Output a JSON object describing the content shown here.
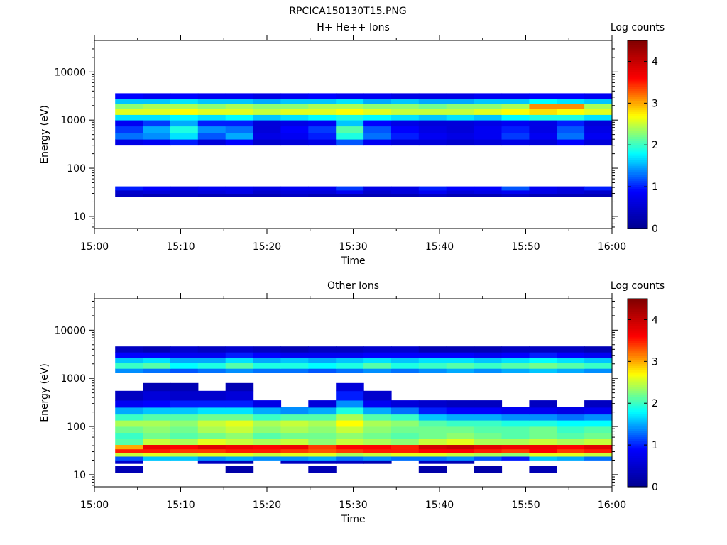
{
  "figure": {
    "title": "RPCICA150130T15.PNG",
    "background": "#ffffff"
  },
  "colormap": {
    "name": "jet",
    "stops": [
      "#00008f",
      "#0000ff",
      "#00ffff",
      "#ffff00",
      "#ff0000",
      "#800000"
    ]
  },
  "chart_data": [
    {
      "type": "heatmap",
      "title": "H+ He++ Ions",
      "xlabel": "Time",
      "ylabel": "Energy (eV)",
      "yscale": "log",
      "x_ticks": [
        "15:00",
        "15:10",
        "15:20",
        "15:30",
        "15:40",
        "15:50",
        "16:00"
      ],
      "x_tick_minutes": [
        0,
        10,
        20,
        30,
        40,
        50,
        60
      ],
      "xlim_minutes": [
        0,
        60
      ],
      "y_ticks": [
        10,
        100,
        1000,
        10000
      ],
      "y_tick_labels": [
        "10",
        "100",
        "1000",
        "10000"
      ],
      "ylim": [
        5.6,
        45000
      ],
      "colorbar": {
        "label": "Log counts",
        "range": [
          0,
          4.5
        ],
        "ticks": [
          0,
          1,
          2,
          3,
          4
        ]
      },
      "time_bins_minutes": [
        [
          2.4,
          5.6
        ],
        [
          5.6,
          8.8
        ],
        [
          8.8,
          12
        ],
        [
          12,
          15.2
        ],
        [
          15.2,
          18.4
        ],
        [
          18.4,
          21.6
        ],
        [
          21.6,
          24.8
        ],
        [
          24.8,
          28
        ],
        [
          28,
          31.2
        ],
        [
          31.2,
          34.4
        ],
        [
          34.4,
          37.6
        ],
        [
          37.6,
          40.8
        ],
        [
          40.8,
          44
        ],
        [
          44,
          47.2
        ],
        [
          47.2,
          50.4
        ],
        [
          50.4,
          53.6
        ],
        [
          53.6,
          56.8
        ],
        [
          56.8,
          60
        ]
      ],
      "bands": [
        {
          "energy": [
            26,
            29
          ],
          "values": [
            0.4,
            0.3,
            0.4,
            0.3,
            0.3,
            0.3,
            0.4,
            0.3,
            0.3,
            0.3,
            0.3,
            0.4,
            0.3,
            0.3,
            0.4,
            0.3,
            0.3,
            0.3
          ]
        },
        {
          "energy": [
            29,
            35
          ],
          "values": [
            0.5,
            0.6,
            0.5,
            0.6,
            0.7,
            0.5,
            0.6,
            0.6,
            0.8,
            0.5,
            0.6,
            0.8,
            0.6,
            0.7,
            0.8,
            0.7,
            0.6,
            0.5
          ]
        },
        {
          "energy": [
            35,
            42
          ],
          "values": [
            1.0,
            0.9,
            0.7,
            0.8,
            0.8,
            0.7,
            0.8,
            0.8,
            1.1,
            0.7,
            0.7,
            1.0,
            0.9,
            0.9,
            1.2,
            0.8,
            0.7,
            1.0
          ]
        },
        {
          "energy": [
            300,
            400
          ],
          "values": [
            0.7,
            0.8,
            1.0,
            0.6,
            0.9,
            0.5,
            0.6,
            0.7,
            1.2,
            0.8,
            0.6,
            0.6,
            0.5,
            0.6,
            0.7,
            0.6,
            0.9,
            0.6
          ]
        },
        {
          "energy": [
            400,
            550
          ],
          "values": [
            1.3,
            1.4,
            1.7,
            1.2,
            1.5,
            0.7,
            0.8,
            1.0,
            1.9,
            1.3,
            1.0,
            0.8,
            0.7,
            0.8,
            1.1,
            0.8,
            1.3,
            0.8
          ]
        },
        {
          "energy": [
            550,
            750
          ],
          "values": [
            1.1,
            1.5,
            1.9,
            1.4,
            1.3,
            0.6,
            0.9,
            1.1,
            2.1,
            1.2,
            0.9,
            0.7,
            0.6,
            0.8,
            1.0,
            0.7,
            1.2,
            0.7
          ]
        },
        {
          "energy": [
            750,
            1000
          ],
          "values": [
            0.8,
            1.1,
            1.5,
            1.0,
            1.0,
            0.6,
            0.7,
            0.8,
            1.6,
            0.9,
            0.7,
            0.6,
            0.6,
            0.7,
            0.8,
            0.7,
            1.0,
            0.6
          ]
        },
        {
          "energy": [
            1000,
            1300
          ],
          "values": [
            1.7,
            1.7,
            1.8,
            1.7,
            1.8,
            1.6,
            1.7,
            1.8,
            1.9,
            1.8,
            1.7,
            1.6,
            1.7,
            1.6,
            1.8,
            1.9,
            1.9,
            1.7
          ]
        },
        {
          "energy": [
            1300,
            1700
          ],
          "values": [
            2.6,
            2.6,
            2.7,
            2.6,
            2.6,
            2.5,
            2.6,
            2.6,
            2.7,
            2.6,
            2.5,
            2.5,
            2.5,
            2.6,
            2.7,
            2.8,
            2.7,
            2.6
          ]
        },
        {
          "energy": [
            1700,
            2200
          ],
          "values": [
            2.3,
            2.4,
            2.4,
            2.3,
            2.4,
            2.3,
            2.3,
            2.4,
            2.4,
            2.3,
            2.3,
            2.2,
            2.3,
            2.3,
            2.4,
            3.1,
            3.1,
            2.4
          ]
        },
        {
          "energy": [
            2200,
            2800
          ],
          "values": [
            1.6,
            1.6,
            1.7,
            1.6,
            1.6,
            1.5,
            1.6,
            1.6,
            1.7,
            1.5,
            1.6,
            1.5,
            1.5,
            1.6,
            1.6,
            1.8,
            1.7,
            1.6
          ]
        },
        {
          "energy": [
            2800,
            3600
          ],
          "values": [
            0.9,
            0.8,
            0.9,
            0.8,
            0.8,
            0.7,
            0.8,
            0.9,
            0.8,
            0.8,
            0.7,
            0.7,
            0.7,
            0.8,
            0.8,
            0.9,
            0.9,
            0.8
          ]
        }
      ]
    },
    {
      "type": "heatmap",
      "title": "Other Ions",
      "xlabel": "Time",
      "ylabel": "Energy (eV)",
      "yscale": "log",
      "x_ticks": [
        "15:00",
        "15:10",
        "15:20",
        "15:30",
        "15:40",
        "15:50",
        "16:00"
      ],
      "x_tick_minutes": [
        0,
        10,
        20,
        30,
        40,
        50,
        60
      ],
      "xlim_minutes": [
        0,
        60
      ],
      "y_ticks": [
        10,
        100,
        1000,
        10000
      ],
      "y_tick_labels": [
        "10",
        "100",
        "1000",
        "10000"
      ],
      "ylim": [
        5.6,
        45000
      ],
      "colorbar": {
        "label": "Log counts",
        "range": [
          0,
          4.5
        ],
        "ticks": [
          0,
          1,
          2,
          3,
          4
        ]
      },
      "time_bins_minutes": [
        [
          2.4,
          5.6
        ],
        [
          5.6,
          8.8
        ],
        [
          8.8,
          12
        ],
        [
          12,
          15.2
        ],
        [
          15.2,
          18.4
        ],
        [
          18.4,
          21.6
        ],
        [
          21.6,
          24.8
        ],
        [
          24.8,
          28
        ],
        [
          28,
          31.2
        ],
        [
          31.2,
          34.4
        ],
        [
          34.4,
          37.6
        ],
        [
          37.6,
          40.8
        ],
        [
          40.8,
          44
        ],
        [
          44,
          47.2
        ],
        [
          47.2,
          50.4
        ],
        [
          50.4,
          53.6
        ],
        [
          53.6,
          56.8
        ],
        [
          56.8,
          60
        ]
      ],
      "bands": [
        {
          "energy": [
            11,
            15
          ],
          "values": [
            0.3,
            null,
            null,
            null,
            0.2,
            null,
            null,
            0.3,
            null,
            null,
            null,
            0.2,
            null,
            0.2,
            null,
            0.3,
            null,
            null
          ]
        },
        {
          "energy": [
            17,
            20
          ],
          "values": [
            0.5,
            null,
            null,
            0.4,
            0.3,
            null,
            0.4,
            0.4,
            0.4,
            0.3,
            null,
            0.4,
            0.3,
            null,
            null,
            null,
            null,
            null
          ]
        },
        {
          "energy": [
            20,
            24
          ],
          "values": [
            1.2,
            1.6,
            1.6,
            1.4,
            1.5,
            1.4,
            1.4,
            1.5,
            1.3,
            1.4,
            1.3,
            1.3,
            1.4,
            1.2,
            1.0,
            1.6,
            1.5,
            1.3
          ]
        },
        {
          "energy": [
            24,
            28
          ],
          "values": [
            2.5,
            2.6,
            2.5,
            2.6,
            2.6,
            2.5,
            2.6,
            2.6,
            2.4,
            2.5,
            2.6,
            2.6,
            2.5,
            2.4,
            2.3,
            2.6,
            2.6,
            2.5
          ]
        },
        {
          "energy": [
            28,
            34
          ],
          "values": [
            3.5,
            3.5,
            3.4,
            3.4,
            3.5,
            3.5,
            3.4,
            3.3,
            3.4,
            3.5,
            3.5,
            3.6,
            3.6,
            3.5,
            3.4,
            3.6,
            3.4,
            3.5
          ]
        },
        {
          "energy": [
            34,
            42
          ],
          "values": [
            3.0,
            3.7,
            3.6,
            3.8,
            3.7,
            3.6,
            3.7,
            3.4,
            3.6,
            3.6,
            3.5,
            3.9,
            4.0,
            3.8,
            3.7,
            3.7,
            3.6,
            3.8
          ]
        },
        {
          "energy": [
            42,
            55
          ],
          "values": [
            2.1,
            2.5,
            2.4,
            2.6,
            2.5,
            2.4,
            2.5,
            2.3,
            2.5,
            2.4,
            2.3,
            2.5,
            2.6,
            2.4,
            2.4,
            2.5,
            2.4,
            2.5
          ]
        },
        {
          "energy": [
            55,
            75
          ],
          "values": [
            2.0,
            2.2,
            2.1,
            2.2,
            2.3,
            2.1,
            2.2,
            2.2,
            2.3,
            2.2,
            2.1,
            2.2,
            2.3,
            2.2,
            2.1,
            2.2,
            2.1,
            2.2
          ]
        },
        {
          "energy": [
            75,
            100
          ],
          "values": [
            2.2,
            2.3,
            2.2,
            2.4,
            2.5,
            2.3,
            2.4,
            2.3,
            2.5,
            2.3,
            2.2,
            2.2,
            2.2,
            2.1,
            2.1,
            2.2,
            2.0,
            2.1
          ]
        },
        {
          "energy": [
            100,
            135
          ],
          "values": [
            2.4,
            2.4,
            2.3,
            2.5,
            2.6,
            2.4,
            2.5,
            2.4,
            2.7,
            2.4,
            2.3,
            2.1,
            2.0,
            2.0,
            1.9,
            1.9,
            1.8,
            1.8
          ]
        },
        {
          "energy": [
            135,
            180
          ],
          "values": [
            2.0,
            2.1,
            2.1,
            2.2,
            2.2,
            2.0,
            2.1,
            2.1,
            2.4,
            2.1,
            2.0,
            1.6,
            1.5,
            1.5,
            1.4,
            1.4,
            1.3,
            1.4
          ]
        },
        {
          "energy": [
            180,
            250
          ],
          "values": [
            1.5,
            1.6,
            1.6,
            1.7,
            1.7,
            1.5,
            1.4,
            1.5,
            1.9,
            1.5,
            1.3,
            1.0,
            0.9,
            0.9,
            0.8,
            0.8,
            0.7,
            0.8
          ]
        },
        {
          "energy": [
            250,
            350
          ],
          "values": [
            0.8,
            0.9,
            1.0,
            1.0,
            1.0,
            0.7,
            null,
            0.6,
            1.4,
            0.8,
            0.6,
            0.5,
            0.4,
            0.4,
            null,
            0.4,
            null,
            0.4
          ]
        },
        {
          "energy": [
            350,
            550
          ],
          "values": [
            0.4,
            0.6,
            0.5,
            0.5,
            0.6,
            null,
            null,
            null,
            1.0,
            0.5,
            null,
            null,
            null,
            null,
            null,
            null,
            null,
            null
          ]
        },
        {
          "energy": [
            550,
            800
          ],
          "values": [
            null,
            0.3,
            0.3,
            null,
            0.3,
            null,
            null,
            null,
            0.6,
            null,
            null,
            null,
            null,
            null,
            null,
            null,
            null,
            null
          ]
        },
        {
          "energy": [
            1300,
            1600
          ],
          "values": [
            1.4,
            1.3,
            1.2,
            1.3,
            1.4,
            1.3,
            1.3,
            1.2,
            1.3,
            1.4,
            1.3,
            1.4,
            1.5,
            1.4,
            1.5,
            1.6,
            1.5,
            1.4
          ]
        },
        {
          "energy": [
            1600,
            2100
          ],
          "values": [
            2.0,
            2.1,
            1.8,
            1.9,
            2.1,
            1.9,
            1.9,
            1.8,
            1.9,
            2.1,
            1.9,
            2.0,
            2.1,
            2.0,
            2.1,
            2.2,
            2.1,
            2.0
          ]
        },
        {
          "energy": [
            2100,
            2700
          ],
          "values": [
            1.6,
            1.7,
            1.5,
            1.5,
            1.7,
            1.5,
            1.6,
            1.5,
            1.6,
            1.7,
            1.6,
            1.7,
            1.7,
            1.6,
            1.7,
            1.8,
            1.7,
            1.6
          ]
        },
        {
          "energy": [
            2700,
            3500
          ],
          "values": [
            0.9,
            0.9,
            0.8,
            0.8,
            1.0,
            0.9,
            0.8,
            0.8,
            0.8,
            0.9,
            0.9,
            0.9,
            0.9,
            0.8,
            0.9,
            1.0,
            0.9,
            0.8
          ]
        },
        {
          "energy": [
            3500,
            4600
          ],
          "values": [
            0.4,
            0.3,
            0.5,
            0.4,
            0.5,
            0.4,
            0.3,
            0.4,
            0.4,
            0.5,
            0.5,
            0.3,
            0.3,
            0.3,
            0.4,
            0.4,
            0.4,
            0.3
          ]
        }
      ]
    }
  ]
}
